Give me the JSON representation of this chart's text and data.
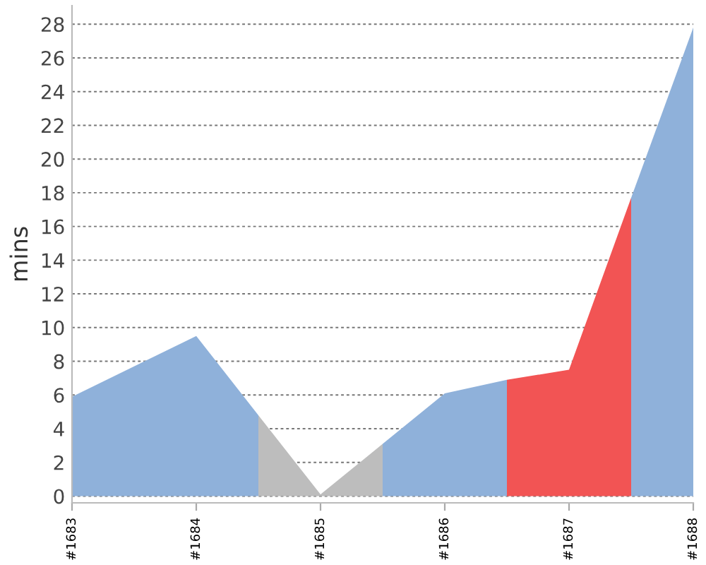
{
  "chart_data": {
    "type": "area",
    "ylabel": "mins",
    "x": [
      1683,
      1684,
      1684.5,
      1685,
      1685.5,
      1686,
      1686.5,
      1687,
      1687.5,
      1688
    ],
    "xlim": [
      1683,
      1688
    ],
    "xticks": [
      {
        "value": 1683,
        "label": "#1683"
      },
      {
        "value": 1684,
        "label": "#1684"
      },
      {
        "value": 1685,
        "label": "#1685"
      },
      {
        "value": 1686,
        "label": "#1686"
      },
      {
        "value": 1687,
        "label": "#1687"
      },
      {
        "value": 1688,
        "label": "#1688"
      }
    ],
    "series": [
      {
        "color": "#8fb1da",
        "values": [
          5.9,
          9.5,
          4.8,
          null,
          3.1,
          6.1,
          6.9,
          null,
          17.7,
          27.8
        ]
      },
      {
        "color": "#bdbdbd",
        "x": [
          1684.5,
          1685,
          1685.5
        ],
        "values": [
          4.8,
          0.1,
          3.1
        ]
      },
      {
        "color": "#f25454",
        "x": [
          1686.5,
          1687,
          1687.5
        ],
        "values": [
          6.9,
          7.5,
          17.7
        ]
      }
    ],
    "ylim": [
      -0.4,
      29.1
    ],
    "yticks": [
      0,
      2,
      4,
      6,
      8,
      10,
      12,
      14,
      16,
      18,
      20,
      22,
      24,
      26,
      28
    ],
    "grid": "y",
    "legend": false
  }
}
